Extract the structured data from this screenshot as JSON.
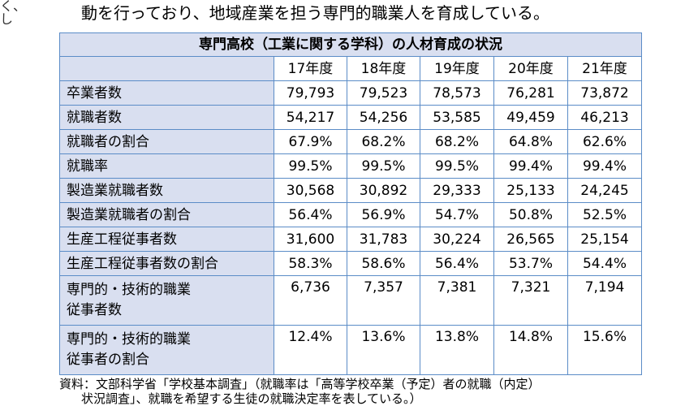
{
  "edge_text": [
    "く、",
    "し"
  ],
  "intro_text": "動を行っており、地域産業を担う専門的職業人を育成している。",
  "table": {
    "title": "専門高校（工業に関する学科）の人材育成の状況",
    "years": [
      "17年度",
      "18年度",
      "19年度",
      "20年度",
      "21年度"
    ],
    "rows": [
      {
        "label": [
          "卒業者数"
        ],
        "values": [
          "79,793",
          "79,523",
          "78,573",
          "76,281",
          "73,872"
        ]
      },
      {
        "label": [
          "就職者数"
        ],
        "values": [
          "54,217",
          "54,256",
          "53,585",
          "49,459",
          "46,213"
        ]
      },
      {
        "label": [
          "就職者の割合"
        ],
        "values": [
          "67.9%",
          "68.2%",
          "68.2%",
          "64.8%",
          "62.6%"
        ]
      },
      {
        "label": [
          "就職率"
        ],
        "values": [
          "99.5%",
          "99.5%",
          "99.5%",
          "99.4%",
          "99.4%"
        ]
      },
      {
        "label": [
          "製造業就職者数"
        ],
        "values": [
          "30,568",
          "30,892",
          "29,333",
          "25,133",
          "24,245"
        ]
      },
      {
        "label": [
          "製造業就職者の割合"
        ],
        "values": [
          "56.4%",
          "56.9%",
          "54.7%",
          "50.8%",
          "52.5%"
        ]
      },
      {
        "label": [
          "生産工程従事者数"
        ],
        "values": [
          "31,600",
          "31,783",
          "30,224",
          "26,565",
          "25,154"
        ]
      },
      {
        "label": [
          "生産工程従事者数の割合"
        ],
        "values": [
          "58.3%",
          "58.6%",
          "56.4%",
          "53.7%",
          "54.4%"
        ]
      },
      {
        "label": [
          "専門的・技術的職業",
          "従事者数"
        ],
        "values": [
          "6,736",
          "7,357",
          "7,381",
          "7,321",
          "7,194"
        ]
      },
      {
        "label": [
          "専門的・技術的職業",
          "従事者の割合"
        ],
        "values": [
          "12.4%",
          "13.6%",
          "13.8%",
          "14.8%",
          "15.6%"
        ]
      }
    ]
  },
  "source_line1": "資料：文部科学省「学校基本調査」（就職率は「高等学校卒業（予定）者の就職（内定）",
  "source_line2": "状況調査」、就職を希望する生徒の就職決定率を表している。）"
}
